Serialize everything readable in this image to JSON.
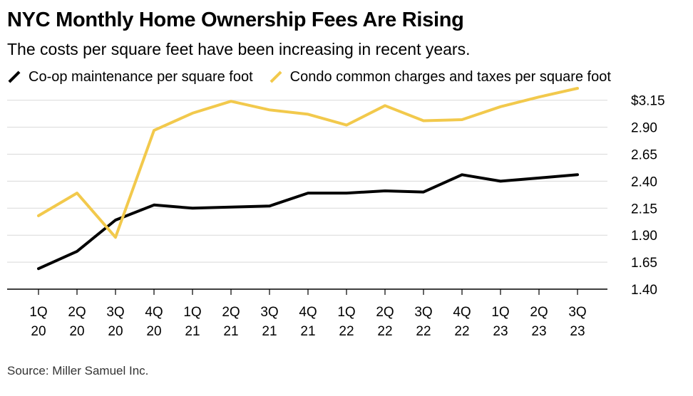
{
  "header": {
    "title": "NYC Monthly Home Ownership Fees Are Rising",
    "subtitle": "The costs per square feet have been increasing in recent years."
  },
  "source": "Source: Miller Samuel Inc.",
  "chart_data": {
    "type": "line",
    "title": "NYC Monthly Home Ownership Fees Are Rising",
    "subtitle": "The costs per square feet have been increasing in recent years.",
    "categories": [
      [
        "1Q",
        "20"
      ],
      [
        "2Q",
        "20"
      ],
      [
        "3Q",
        "20"
      ],
      [
        "4Q",
        "20"
      ],
      [
        "1Q",
        "21"
      ],
      [
        "2Q",
        "21"
      ],
      [
        "3Q",
        "21"
      ],
      [
        "4Q",
        "21"
      ],
      [
        "1Q",
        "22"
      ],
      [
        "2Q",
        "22"
      ],
      [
        "3Q",
        "22"
      ],
      [
        "4Q",
        "22"
      ],
      [
        "1Q",
        "23"
      ],
      [
        "2Q",
        "23"
      ],
      [
        "3Q",
        "23"
      ]
    ],
    "series": [
      {
        "name": "Co-op maintenance per square foot",
        "color": "#000000",
        "values": [
          1.59,
          1.75,
          2.04,
          2.18,
          2.15,
          2.16,
          2.17,
          2.29,
          2.29,
          2.31,
          2.3,
          2.46,
          2.4,
          2.43,
          2.46
        ]
      },
      {
        "name": "Condo common charges and taxes per square foot",
        "color": "#F2C94C",
        "values": [
          2.08,
          2.29,
          1.88,
          2.87,
          3.03,
          3.14,
          3.06,
          3.02,
          2.92,
          3.1,
          2.96,
          2.97,
          3.09,
          3.18,
          3.26
        ]
      }
    ],
    "yticks": [
      "1.40",
      "1.65",
      "1.90",
      "2.15",
      "2.40",
      "2.65",
      "2.90",
      "$3.15"
    ],
    "ylim": [
      1.4,
      3.26
    ],
    "grid": true,
    "legend": "top-left",
    "yaxis_side": "right"
  }
}
